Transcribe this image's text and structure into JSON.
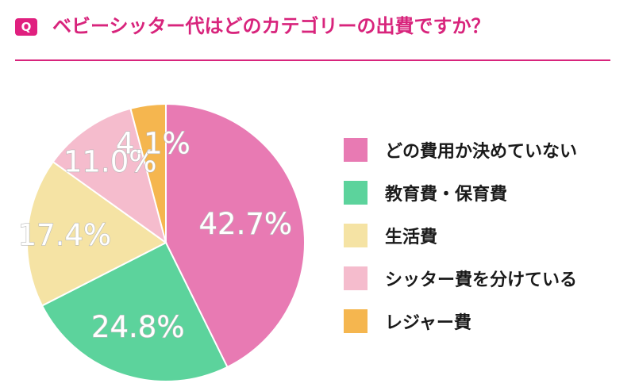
{
  "header": {
    "badge": "Q",
    "question": "ベビーシッター代はどのカテゴリーの出費ですか？"
  },
  "chart_data": {
    "type": "pie",
    "title": "ベビーシッター代はどのカテゴリーの出費ですか？",
    "categories": [
      "どの費用か決めていない",
      "教育費・保育費",
      "生活費",
      "シッター費を分けている",
      "レジャー費"
    ],
    "values": [
      42.7,
      24.8,
      17.4,
      11.0,
      4.1
    ],
    "value_labels": [
      "42.7%",
      "24.8%",
      "17.4%",
      "11.0%",
      "4.1%"
    ],
    "colors": [
      "#e87ab3",
      "#5cd39c",
      "#f5e3a4",
      "#f5bccd",
      "#f5b64f"
    ],
    "start": "12 o'clock",
    "direction": "clockwise",
    "legend_position": "right"
  }
}
